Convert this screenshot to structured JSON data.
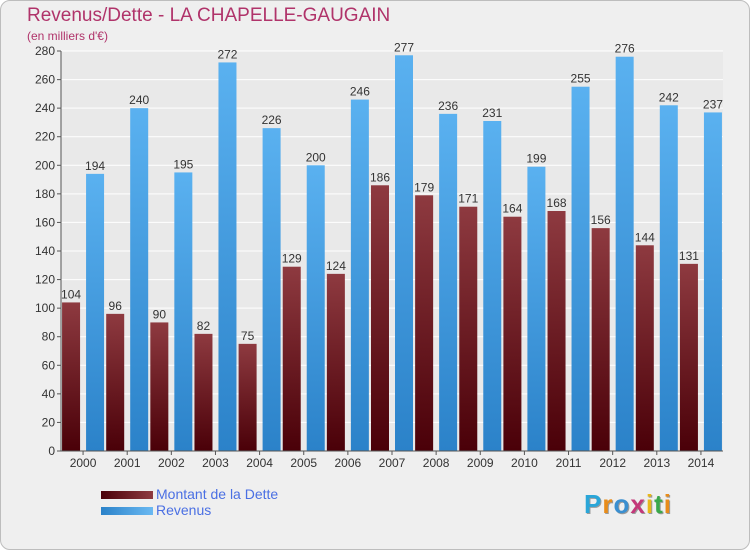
{
  "title": "Revenus/Dette - LA CHAPELLE-GAUGAIN",
  "subtitle": "(en milliers d'€)",
  "chart_data": {
    "type": "bar",
    "categories": [
      "2000",
      "2001",
      "2002",
      "2003",
      "2004",
      "2005",
      "2006",
      "2007",
      "2008",
      "2009",
      "2010",
      "2011",
      "2012",
      "2013",
      "2014"
    ],
    "series": [
      {
        "name": "Montant de la Dette",
        "values": [
          104,
          96,
          90,
          82,
          75,
          129,
          124,
          186,
          179,
          171,
          164,
          168,
          156,
          144,
          131
        ],
        "color": "#7a1f2a"
      },
      {
        "name": "Revenus",
        "values": [
          194,
          240,
          195,
          272,
          226,
          200,
          246,
          277,
          236,
          231,
          199,
          255,
          276,
          242,
          237
        ],
        "color": "#3e9fe6"
      }
    ],
    "ylim": [
      0,
      280
    ],
    "yticks": [
      0,
      20,
      40,
      60,
      80,
      100,
      120,
      140,
      160,
      180,
      200,
      220,
      240,
      260,
      280
    ],
    "grid": true,
    "legend_position": "bottom-left"
  },
  "legend": {
    "items": [
      {
        "label": "Montant de la Dette",
        "color": "#7a1f2a"
      },
      {
        "label": "Revenus",
        "color": "#3e9fe6"
      }
    ]
  },
  "logo": {
    "letters": [
      {
        "ch": "P",
        "color": "#2aa6d8"
      },
      {
        "ch": "r",
        "color": "#e88c1a"
      },
      {
        "ch": "o",
        "color": "#3a8fd0"
      },
      {
        "ch": "x",
        "color": "#c4387a"
      },
      {
        "ch": "i",
        "color": "#e8b81a"
      },
      {
        "ch": "t",
        "color": "#3aa84a"
      },
      {
        "ch": "i",
        "color": "#e88c1a"
      }
    ]
  }
}
